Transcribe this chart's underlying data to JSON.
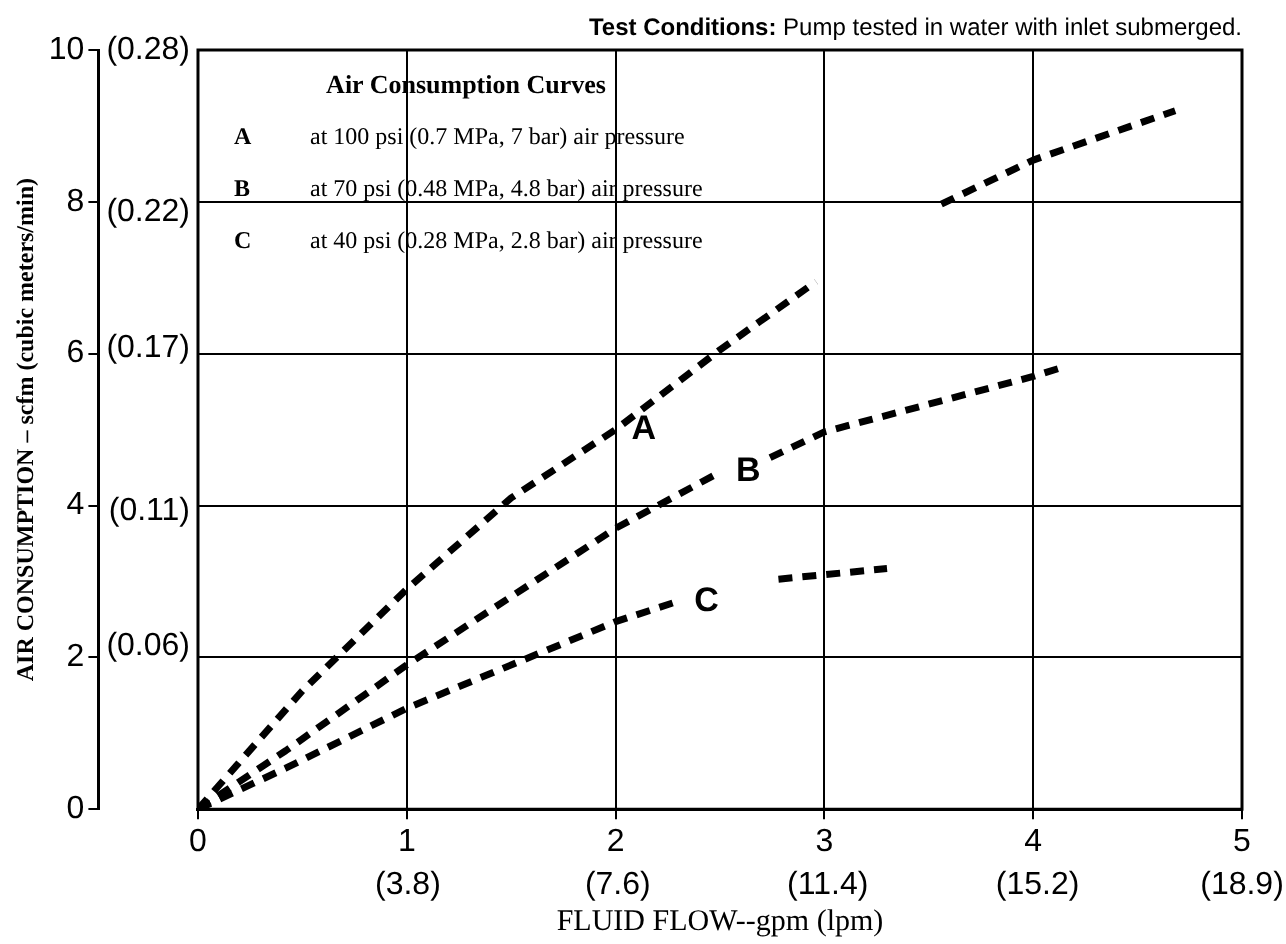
{
  "chart_data": {
    "type": "line",
    "xlabel": "FLUID FLOW--gpm (lpm)",
    "ylabel": "AIR CONSUMPTION – scfm (cubic meters/min)",
    "legend_title": "Air Consumption Curves",
    "grid": true,
    "marker": "none",
    "line_style": "dashed",
    "xlim": [
      0,
      5
    ],
    "xticks": [
      0,
      1,
      2,
      3,
      4,
      5
    ],
    "x2lim": [
      0,
      18.9
    ],
    "x2ticks": [
      {
        "value": 3.8,
        "label": "(3.8)"
      },
      {
        "value": 7.6,
        "label": "(7.6)"
      },
      {
        "value": 11.4,
        "label": "(11.4)"
      },
      {
        "value": 15.2,
        "label": "(15.2)"
      },
      {
        "value": 18.9,
        "label": "(18.9)"
      }
    ],
    "ylim": [
      0,
      10
    ],
    "yticks": [
      0,
      2,
      4,
      6,
      8,
      10
    ],
    "y2lim": [
      0,
      0.28
    ],
    "y2ticks": [
      {
        "value": 0.06,
        "label": "(0.06)"
      },
      {
        "value": 0.11,
        "label": "(0.11)"
      },
      {
        "value": 0.17,
        "label": "(0.17)"
      },
      {
        "value": 0.22,
        "label": "(0.22)"
      },
      {
        "value": 0.28,
        "label": "(0.28)"
      }
    ],
    "series": [
      {
        "color": "#000000",
        "x": [
          0,
          0.5,
          1,
          1.5,
          2,
          2.5,
          2.96,
          3.2,
          3.56,
          4,
          4.68
        ],
        "values": [
          0,
          1.56,
          2.9,
          4.1,
          5.0,
          6.05,
          6.95,
          null,
          7.97,
          8.55,
          9.2
        ]
      },
      {
        "color": "#000000",
        "x": [
          0,
          0.42,
          1,
          2,
          2.5,
          2.6,
          2.74,
          3,
          4,
          4.14
        ],
        "values": [
          0,
          0.77,
          1.9,
          3.7,
          4.44,
          null,
          4.63,
          4.97,
          5.7,
          5.82
        ]
      },
      {
        "color": "#000000",
        "x": [
          0,
          0.42,
          1,
          2,
          2.3,
          2.5,
          2.78,
          3.3
        ],
        "values": [
          0,
          0.54,
          1.33,
          2.47,
          2.74,
          null,
          3.03,
          3.17
        ]
      }
    ],
    "annotations": [
      "Test Conditions: Pump tested in water with inlet submerged.",
      "A",
      "at 100 psi (0.7 MPa, 7 bar) air pressure",
      "B",
      "at 70 psi (0.48 MPa, 4.8 bar) air pressure",
      "C",
      "at 40 psi (0.28 MPa, 2.8 bar) air pressure",
      {
        "text": "A",
        "x": 2,
        "y": 5.0
      },
      {
        "text": "B",
        "x": 2.5,
        "y": 4.44
      },
      {
        "text": "C",
        "x": 2.3,
        "y": 2.74
      }
    ]
  }
}
